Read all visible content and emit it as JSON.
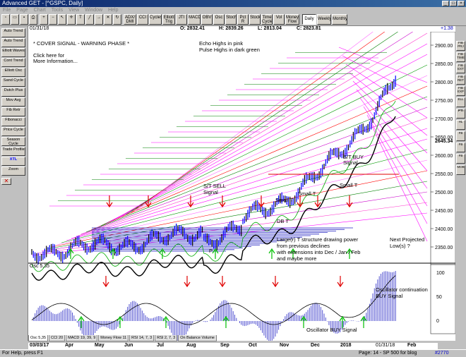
{
  "window": {
    "title": "Advanced GET - [^GSPC, Daily]"
  },
  "menu": [
    "File",
    "Page",
    "Chart",
    "Tools",
    "View",
    "Window",
    "Help"
  ],
  "toolbar": {
    "buttons": [
      "ADX/ DMI",
      "CCI",
      "Cycles",
      "Elliott Trig",
      "JTI",
      "MACD",
      "OBV",
      "Osc",
      "Stoch",
      "Pct R",
      "Stock",
      "Time Cycle",
      "Vol",
      "Money Flow",
      "Daily",
      "Weekly",
      "Monthly"
    ]
  },
  "sidebar": {
    "buttons": [
      "Auto Trend",
      "Auto Trend",
      "Elliott Waves",
      "Cont Trend",
      "Elliott Osc",
      "Sand Cycle",
      "Dutch Plus",
      "Mov Avg",
      "Fib Retr",
      "Fibonacci",
      "Price Cycle",
      "Season Cycle",
      "Trade Profile",
      "XTL",
      "Zoom"
    ]
  },
  "rightbar": {
    "buttons": [
      "FIB PRJ",
      "FIB TIME",
      "FIB EXT",
      "FIB RET",
      "FIB EXP",
      "ELL",
      "PTI",
      "HL",
      "FB",
      "FB",
      "FB",
      "MOB"
    ]
  },
  "info": {
    "date": "01/31/18",
    "open": "O: 2832.41",
    "high": "H: 2839.26",
    "low": "L: 2813.04",
    "close": "C: 2823.81",
    "change": "+1.38"
  },
  "annotations": {
    "cover_signal": "* COVER SIGNAL - WARNING PHASE *",
    "click_here": "Click here for",
    "more_info": "More Information...",
    "echo_highs": "Echo Highs in pink",
    "pulse_highs": "Pulse Highs in dark green",
    "st_buy_1": "S/T BUY",
    "st_buy_2": "Signal",
    "st_sell_1": "S/T SELL",
    "st_sell_2": "Signal",
    "small_t": "Small T",
    "small_t2": "Small T",
    "small_t3": "Small T",
    "db_t": "DB T",
    "p_label": "P",
    "large_t": [
      "Large(r) T structure drawing power",
      "from previous declines",
      "with extensions into Dec / Jan / Feb",
      "and maybe more"
    ],
    "next_projected": [
      "Next Projected",
      "Low(s) ?"
    ],
    "osc_label": "Osc 5,35",
    "osc_continuation": [
      "Oscillator continuation",
      "BUY Signal"
    ],
    "osc_buy": "Oscillator BUY Signal"
  },
  "price_axis": {
    "labels": [
      "2900.00",
      "2850.00",
      "2800.00",
      "2750.00",
      "2700.00",
      "2650.00",
      "2600.00",
      "2550.00",
      "2500.00",
      "2450.00",
      "2400.00",
      "2350.00"
    ],
    "current": "2645.34"
  },
  "osc_axis": {
    "labels": [
      "100",
      "50",
      "0"
    ]
  },
  "tabs": [
    "Osc 5,35",
    "CCI 20",
    "MACD 19, 39, 9",
    "Money Flow 11",
    "RSI 14, 7, 3",
    "RSI 2, 7, 3",
    "On Balance Volume"
  ],
  "dates": {
    "start": "03/03/17",
    "end": "01/31/18",
    "months": [
      "Apr",
      "May",
      "Jun",
      "Jul",
      "Aug",
      "Sep",
      "Oct",
      "Nov",
      "Dec",
      "2018",
      "Feb"
    ]
  },
  "status": {
    "help": "For Help, press F1",
    "page": "Page: 14 - SP 500 for blog",
    "id": "#2770"
  },
  "colors": {
    "echo": "#ff00ff",
    "pulse": "#008000",
    "signal_arrow_red": "#e00000",
    "signal_arrow_green": "#00c000",
    "osc_bars": "#5050d0",
    "price_candle": "#0000ff"
  }
}
